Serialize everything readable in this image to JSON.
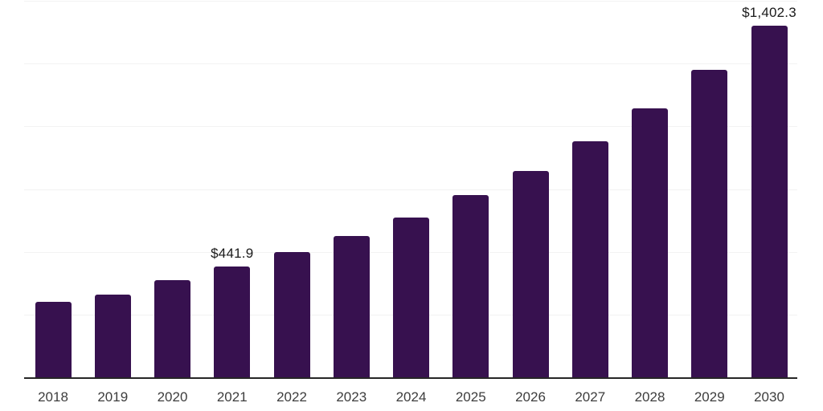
{
  "chart_data": {
    "type": "bar",
    "title": "",
    "xlabel": "",
    "ylabel": "",
    "categories": [
      "2018",
      "2019",
      "2020",
      "2021",
      "2022",
      "2023",
      "2024",
      "2025",
      "2026",
      "2027",
      "2028",
      "2029",
      "2030"
    ],
    "values": [
      300,
      328,
      386,
      441.9,
      498,
      564,
      638,
      727,
      822,
      940,
      1071,
      1224,
      1402.3
    ],
    "labeled_points": [
      {
        "category": "2021",
        "text": "$441.9"
      },
      {
        "category": "2030",
        "text": "$1,402.3"
      }
    ],
    "ylim": [
      0,
      1500
    ],
    "grid_interval": 250,
    "grid": "horizontal-only",
    "y_axis_tick_labels_visible": false,
    "legend_position": "none",
    "colors": {
      "bar": "#37114F",
      "gridline": "#F2F2F2",
      "axis_line": "#262626",
      "tick_label": "#3D3D3D",
      "data_label": "#1A1A1A",
      "background": "#FFFFFF"
    }
  }
}
